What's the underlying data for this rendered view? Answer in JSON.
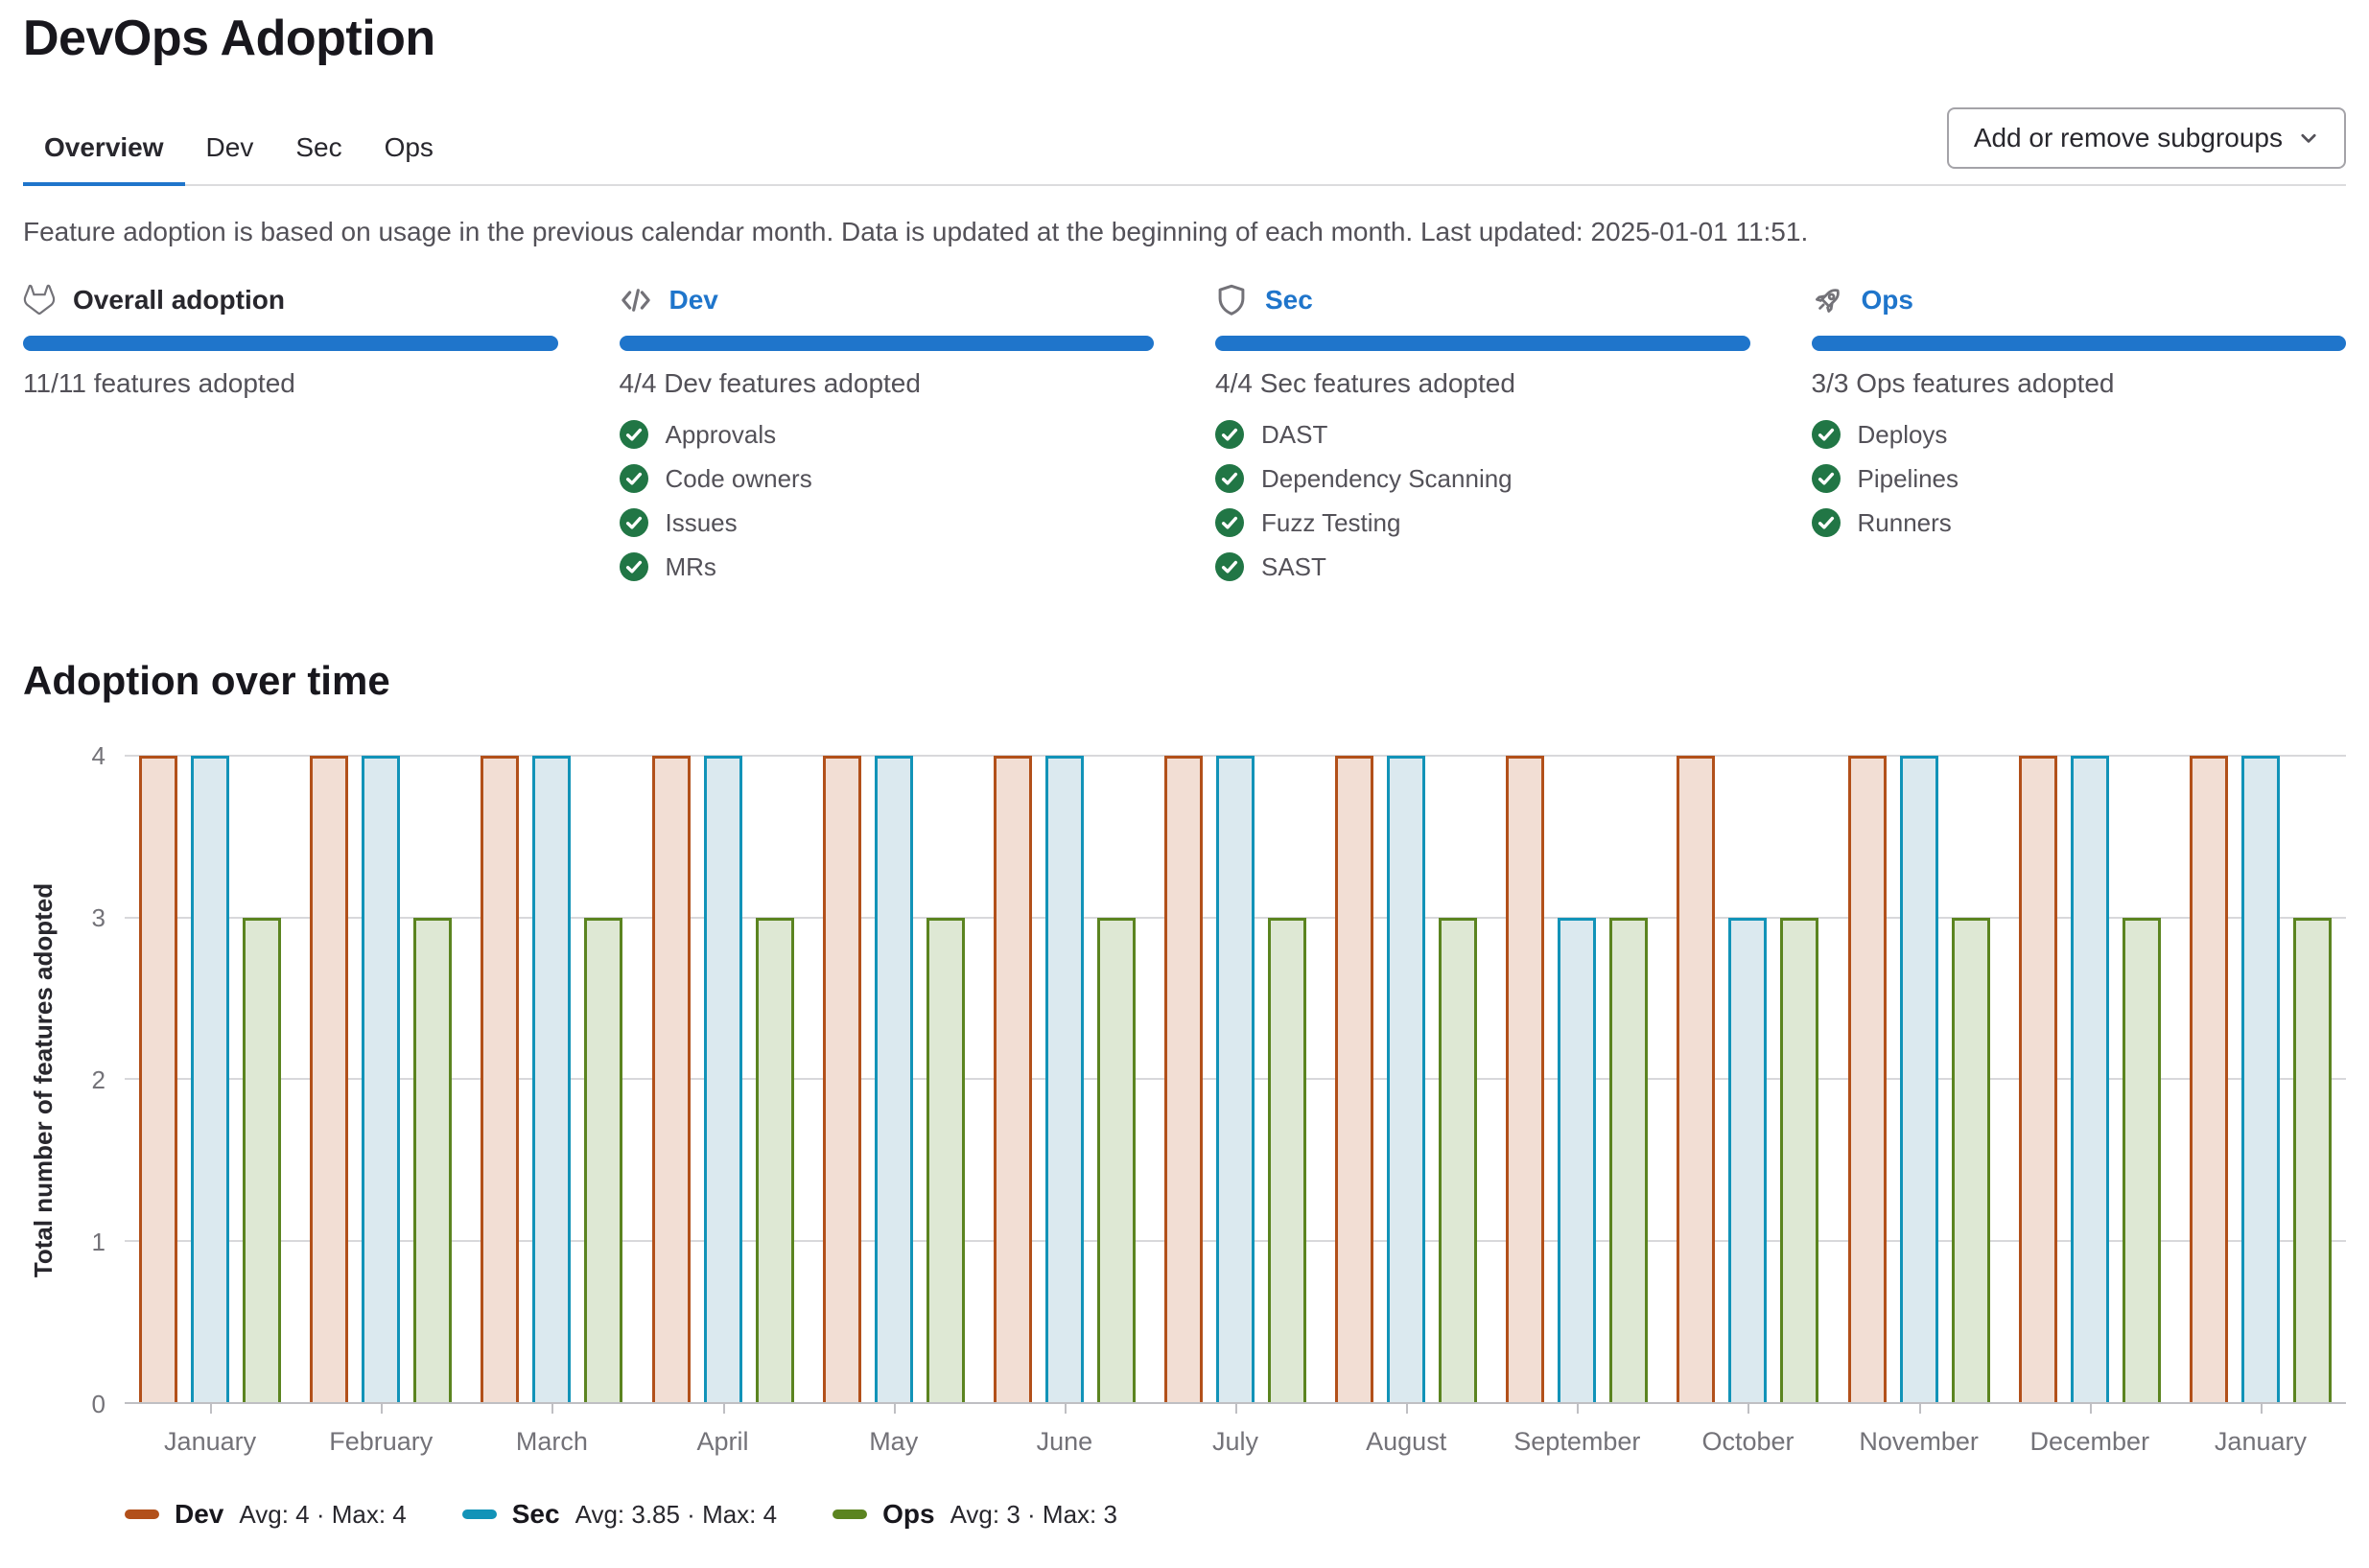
{
  "page": {
    "title": "DevOps Adoption"
  },
  "tabs": [
    {
      "label": "Overview",
      "active": true
    },
    {
      "label": "Dev",
      "active": false
    },
    {
      "label": "Sec",
      "active": false
    },
    {
      "label": "Ops",
      "active": false
    }
  ],
  "subgroups_button": {
    "label": "Add or remove subgroups",
    "icon": "chevron-down-icon"
  },
  "description": "Feature adoption is based on usage in the previous calendar month. Data is updated at the beginning of each month. Last updated: 2025-01-01 11:51.",
  "cards": [
    {
      "title": "Overall adoption",
      "icon": "tanuki-icon",
      "is_link": false,
      "progress_percent": 100,
      "progress_label": "11/11 features adopted",
      "features": []
    },
    {
      "title": "Dev",
      "icon": "code-icon",
      "is_link": true,
      "progress_percent": 100,
      "progress_label": "4/4 Dev features adopted",
      "features": [
        "Approvals",
        "Code owners",
        "Issues",
        "MRs"
      ]
    },
    {
      "title": "Sec",
      "icon": "shield-icon",
      "is_link": true,
      "progress_percent": 100,
      "progress_label": "4/4 Sec features adopted",
      "features": [
        "DAST",
        "Dependency Scanning",
        "Fuzz Testing",
        "SAST"
      ]
    },
    {
      "title": "Ops",
      "icon": "rocket-icon",
      "is_link": true,
      "progress_percent": 100,
      "progress_label": "3/3 Ops features adopted",
      "features": [
        "Deploys",
        "Pipelines",
        "Runners"
      ]
    }
  ],
  "chart_section": {
    "title": "Adoption over time"
  },
  "chart_data": {
    "type": "bar",
    "title": "Adoption over time",
    "xlabel": "",
    "ylabel": "Total number of features adopted",
    "ylim": [
      0,
      4
    ],
    "yticks": [
      0,
      1,
      2,
      3,
      4
    ],
    "grid": true,
    "legend_position": "bottom",
    "categories": [
      "January",
      "February",
      "March",
      "April",
      "May",
      "June",
      "July",
      "August",
      "September",
      "October",
      "November",
      "December",
      "January"
    ],
    "series": [
      {
        "name": "Dev",
        "stroke": "#b2501a",
        "fill": "#f2ded4",
        "legend_stats": "Avg: 4 · Max: 4",
        "values": [
          4,
          4,
          4,
          4,
          4,
          4,
          4,
          4,
          4,
          4,
          4,
          4,
          4
        ]
      },
      {
        "name": "Sec",
        "stroke": "#1293b8",
        "fill": "#dbe9ef",
        "legend_stats": "Avg: 3.85 · Max: 4",
        "values": [
          4,
          4,
          4,
          4,
          4,
          4,
          4,
          4,
          3,
          3,
          4,
          4,
          4
        ]
      },
      {
        "name": "Ops",
        "stroke": "#5b8420",
        "fill": "#dee8d4",
        "legend_stats": "Avg: 3 · Max: 3",
        "values": [
          3,
          3,
          3,
          3,
          3,
          3,
          3,
          3,
          3,
          3,
          3,
          3,
          3
        ]
      }
    ]
  },
  "colors": {
    "accent_blue": "#1f75cb",
    "progress_blue": "#1f75cb",
    "check_green": "#217645",
    "tab_underline": "#1f75cb"
  }
}
